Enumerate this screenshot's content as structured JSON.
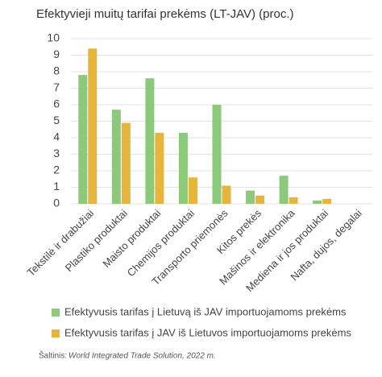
{
  "chart_data": {
    "type": "bar",
    "title": "Efektyvieji muitų tarifai prekėms (LT-JAV) (proc.)",
    "categories": [
      "Tekstilė ir drabužiai",
      "Plastiko produktai",
      "Maisto produktai",
      "Chemijos produktai",
      "Transporto priemonės",
      "Kitos prekės",
      "Mašinos ir elektronika",
      "Mediena ir jos produktai",
      "Nafta, dujos, degalai"
    ],
    "series": [
      {
        "name": "Efektyvusis tarifas į Lietuvą iš JAV importuojamoms prekėms",
        "color": "#8cc97a",
        "values": [
          7.8,
          5.7,
          7.6,
          4.3,
          6.0,
          0.8,
          1.7,
          0.2,
          0
        ]
      },
      {
        "name": "Efektyvusis tarifas į JAV iš Lietuvos importuojamoms prekėms",
        "color": "#e5b53d",
        "values": [
          9.4,
          4.9,
          4.3,
          1.6,
          1.1,
          0.5,
          0.4,
          0.3,
          0
        ]
      }
    ],
    "ylim": [
      0,
      10
    ],
    "yticks": [
      0,
      1,
      2,
      3,
      4,
      5,
      6,
      7,
      8,
      9,
      10
    ],
    "grid": true,
    "source": "Šaltinis:",
    "source_detail": "World Integrated Trade Solution, 2022 m."
  }
}
